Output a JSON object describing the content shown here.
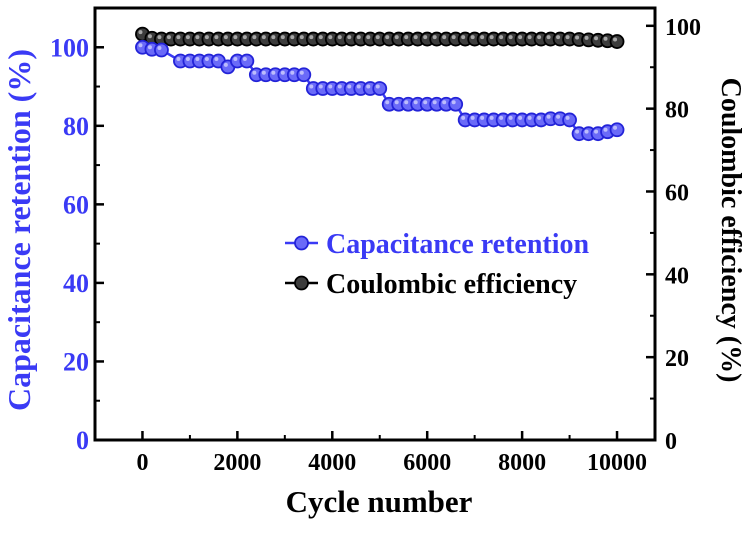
{
  "chart_data": {
    "type": "line",
    "title": "",
    "xlabel": "Cycle number",
    "ylabel_left": "Capacitance retention (%)",
    "ylabel_right": "Coulombic efficiency (%)",
    "xlim": [
      -1000,
      10800
    ],
    "ylim_left": [
      0,
      110
    ],
    "ylim_right": [
      0,
      104.3
    ],
    "x_ticks": [
      0,
      2000,
      4000,
      6000,
      8000,
      10000
    ],
    "x_tick_labels": [
      "0",
      "2000",
      "4000",
      "6000",
      "8000",
      "10000"
    ],
    "y_left_ticks": [
      0,
      20,
      40,
      60,
      80,
      100
    ],
    "y_left_tick_labels": [
      "0",
      "20",
      "40",
      "60",
      "80",
      "100"
    ],
    "y_right_ticks": [
      0,
      20,
      40,
      60,
      80,
      100
    ],
    "y_right_tick_labels": [
      "0",
      "20",
      "40",
      "60",
      "80",
      "100"
    ],
    "grid": false,
    "legend_position": "center-right",
    "series": [
      {
        "name": "Capacitance retention",
        "axis": "left",
        "color": "#3a3af5",
        "x": [
          0,
          200,
          400,
          800,
          1000,
          1200,
          1400,
          1600,
          1800,
          2000,
          2200,
          2400,
          2600,
          2800,
          3000,
          3200,
          3400,
          3600,
          3800,
          4000,
          4200,
          4400,
          4600,
          4800,
          5000,
          5200,
          5400,
          5600,
          5800,
          6000,
          6200,
          6400,
          6600,
          6800,
          7000,
          7200,
          7400,
          7600,
          7800,
          8000,
          8200,
          8400,
          8600,
          8800,
          9000,
          9200,
          9400,
          9600,
          9800,
          10000
        ],
        "y": [
          100,
          99.5,
          99.3,
          96.5,
          96.5,
          96.5,
          96.5,
          96.5,
          95,
          96.5,
          96.5,
          93,
          93,
          93,
          93,
          93,
          93,
          89.5,
          89.5,
          89.5,
          89.5,
          89.5,
          89.5,
          89.5,
          89.5,
          85.5,
          85.5,
          85.5,
          85.5,
          85.5,
          85.5,
          85.5,
          85.5,
          81.5,
          81.5,
          81.5,
          81.5,
          81.5,
          81.5,
          81.5,
          81.5,
          81.5,
          81.8,
          81.8,
          81.5,
          78,
          78,
          78,
          78.5,
          79
        ]
      },
      {
        "name": "Coulombic efficiency",
        "axis": "right",
        "color": "#000000",
        "x": [
          0,
          200,
          400,
          600,
          800,
          1000,
          1200,
          1400,
          1600,
          1800,
          2000,
          2200,
          2400,
          2600,
          2800,
          3000,
          3200,
          3400,
          3600,
          3800,
          4000,
          4200,
          4400,
          4600,
          4800,
          5000,
          5200,
          5400,
          5600,
          5800,
          6000,
          6200,
          6400,
          6600,
          6800,
          7000,
          7200,
          7400,
          7600,
          7800,
          8000,
          8200,
          8400,
          8600,
          8800,
          9000,
          9200,
          9400,
          9600,
          9800,
          10000
        ],
        "y": [
          98,
          97,
          96.8,
          96.8,
          96.8,
          96.8,
          96.8,
          96.8,
          96.8,
          96.8,
          96.8,
          96.8,
          96.8,
          96.8,
          96.8,
          96.8,
          96.8,
          96.8,
          96.8,
          96.8,
          96.8,
          96.8,
          96.8,
          96.8,
          96.8,
          96.8,
          96.8,
          96.8,
          96.8,
          96.8,
          96.8,
          96.8,
          96.8,
          96.8,
          96.8,
          96.8,
          96.8,
          96.8,
          96.8,
          96.8,
          96.8,
          96.8,
          96.8,
          96.8,
          96.8,
          96.8,
          96.7,
          96.6,
          96.5,
          96.4,
          96.2
        ]
      }
    ],
    "colors": {
      "left_axis": "#3a3af5",
      "right_axis": "#000000",
      "frame": "#000000"
    }
  }
}
